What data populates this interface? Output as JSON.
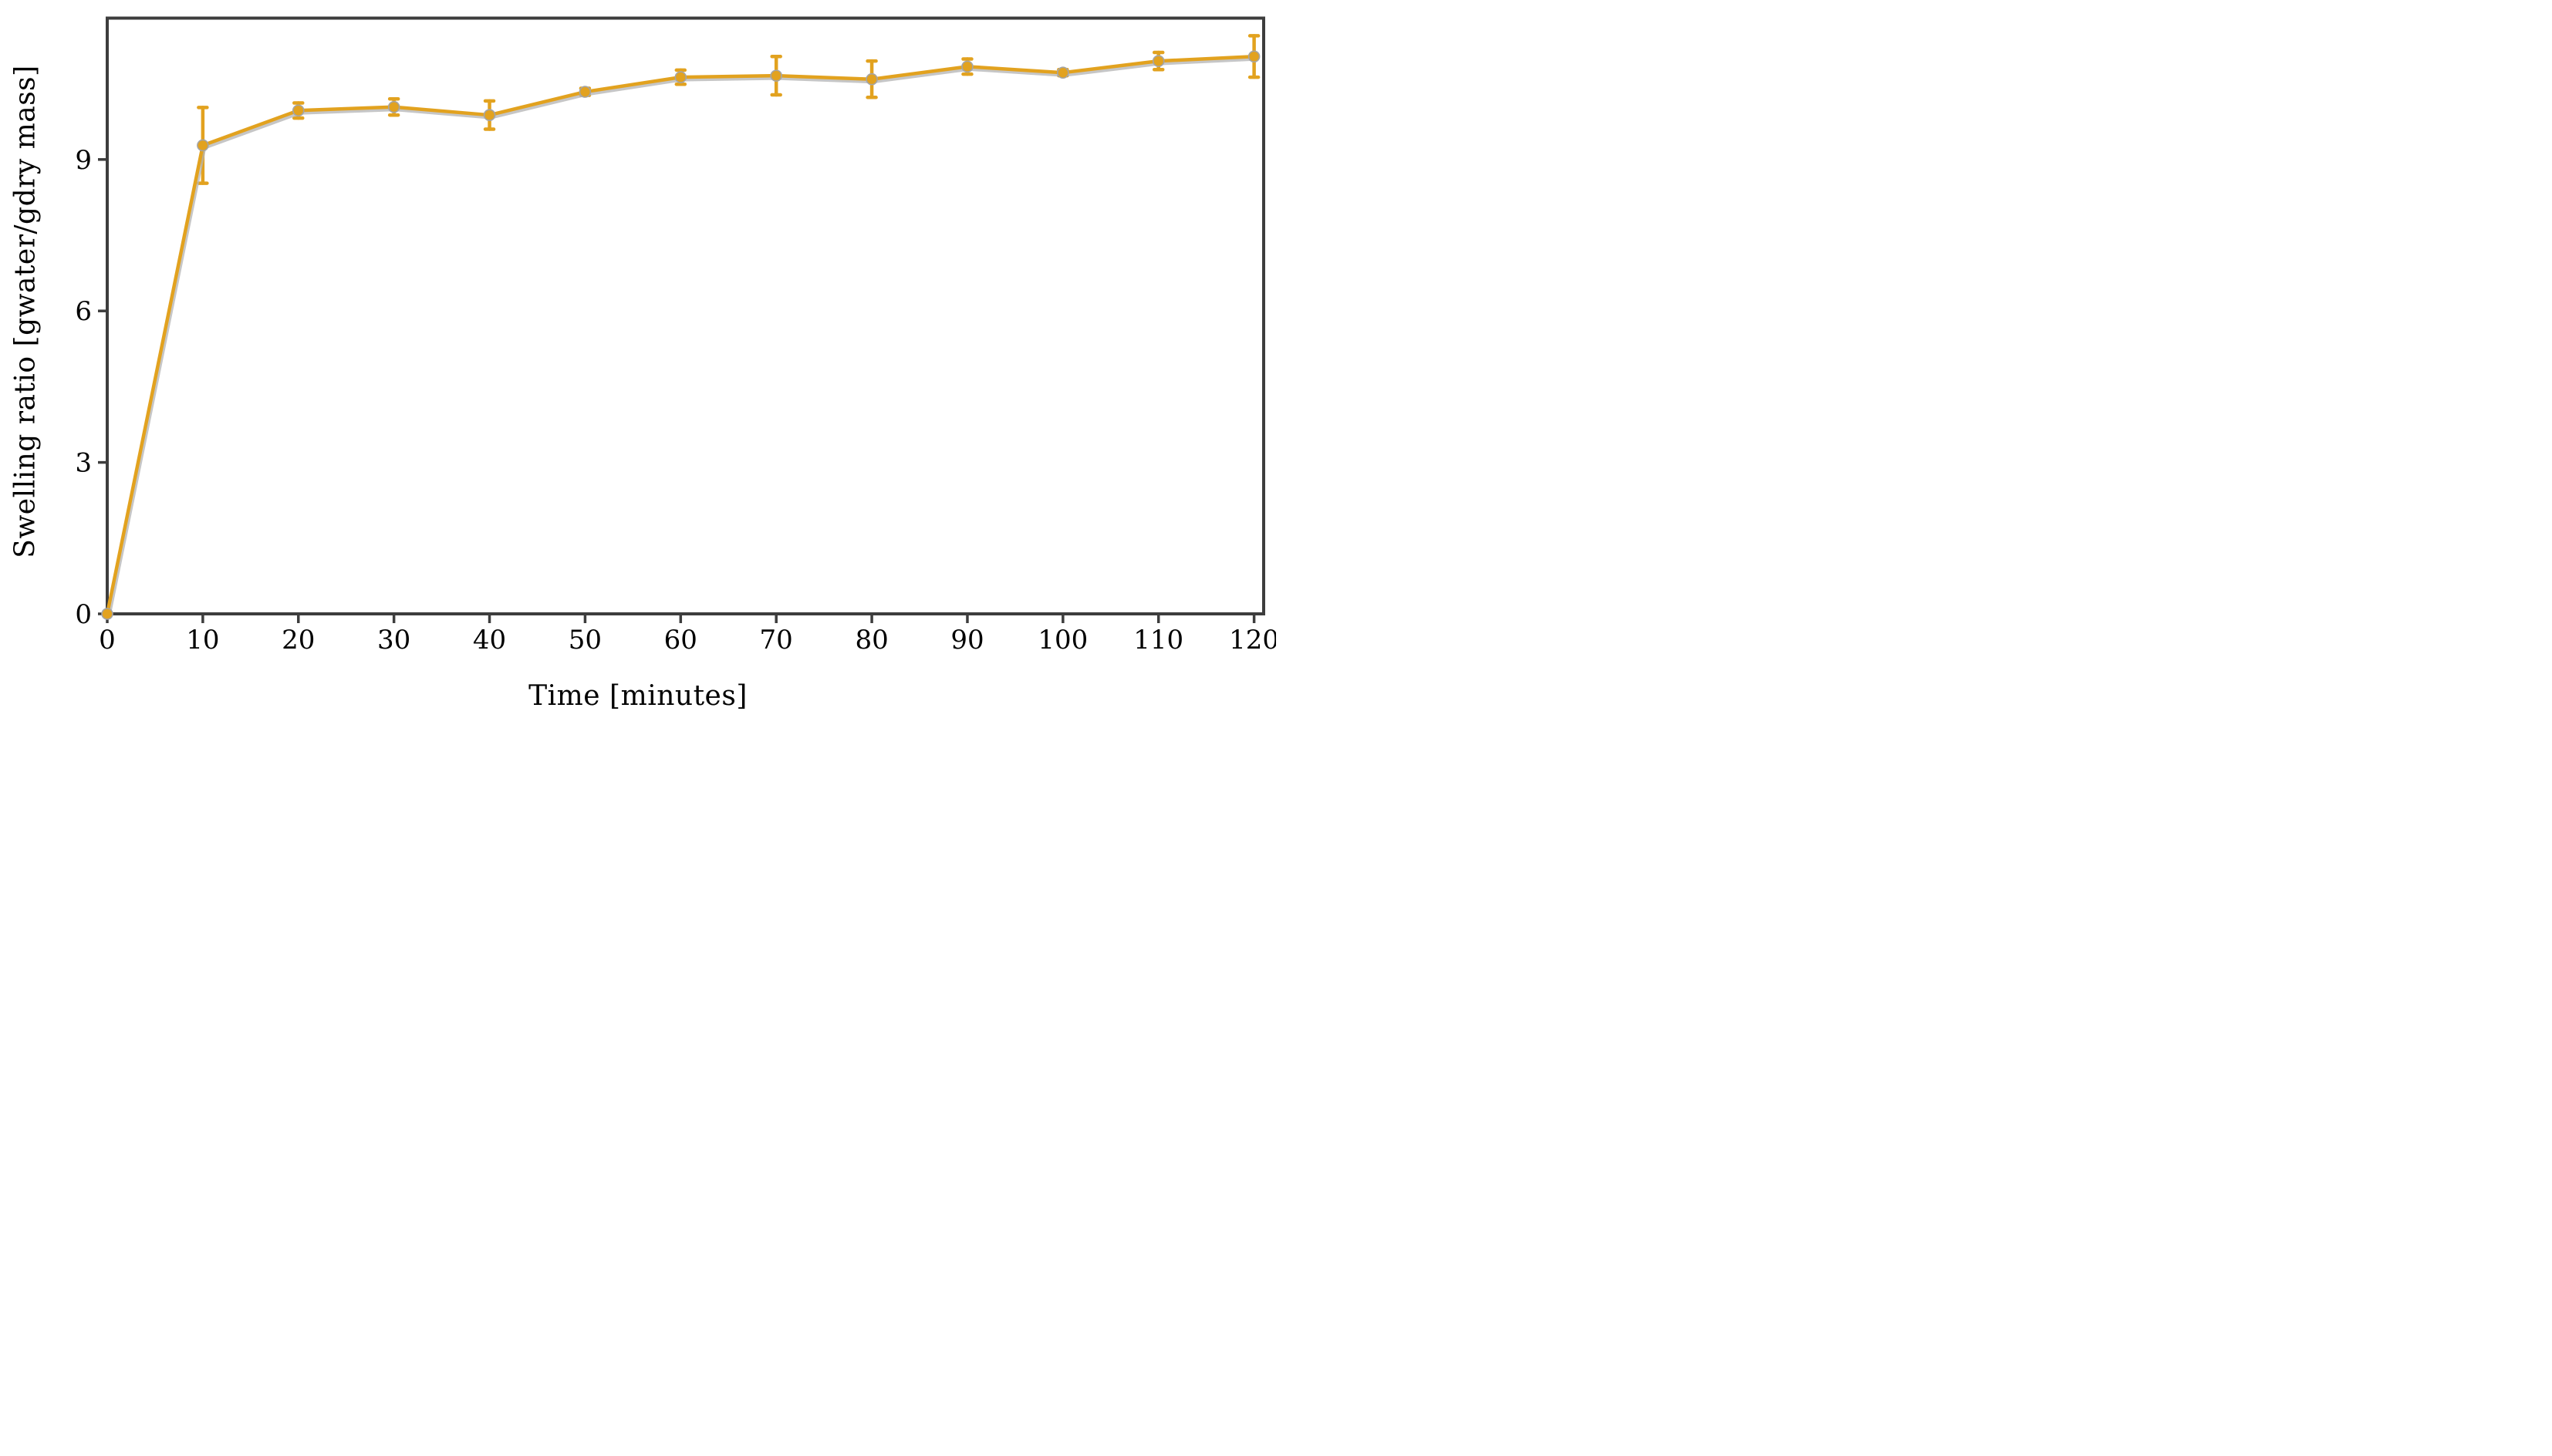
{
  "chart_data": {
    "type": "line",
    "title": "",
    "xlabel": "Time [minutes]",
    "ylabel": "Swelling ratio [gwater/gdry mass]",
    "xlim": [
      0,
      121
    ],
    "ylim": [
      0,
      11.8
    ],
    "xticks": [
      0,
      10,
      20,
      30,
      40,
      50,
      60,
      70,
      80,
      90,
      100,
      110,
      120
    ],
    "yticks": [
      0,
      3,
      6,
      9
    ],
    "grid": false,
    "legend": "none",
    "series": [
      {
        "name": "Swelling ratio",
        "marker": "circle",
        "x": [
          0,
          10,
          20,
          30,
          40,
          50,
          60,
          70,
          80,
          90,
          100,
          110,
          120
        ],
        "y": [
          0.0,
          9.28,
          9.97,
          10.04,
          9.88,
          10.34,
          10.63,
          10.66,
          10.59,
          10.84,
          10.72,
          10.95,
          11.04
        ],
        "yerr": [
          0.0,
          0.75,
          0.15,
          0.16,
          0.28,
          0.07,
          0.14,
          0.38,
          0.36,
          0.15,
          0.06,
          0.17,
          0.41
        ]
      }
    ],
    "colors": {
      "series": "#E2A21F",
      "series_edge": "#A5A5A5",
      "shadow": "#B3B3B3",
      "axis": "#3D3D3D",
      "text": "#000000"
    }
  }
}
